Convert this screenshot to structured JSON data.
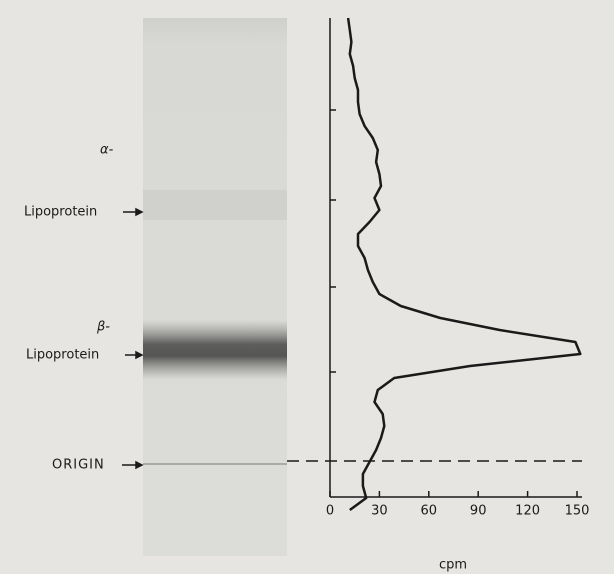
{
  "chart_data": {
    "type": "line",
    "orientation": "vertical-position",
    "annotations": [
      "α-",
      "Lipoprotein",
      "β-",
      "Lipoprotein",
      "ORIGIN"
    ],
    "categories": [
      null,
      null,
      null,
      null,
      null,
      null,
      null,
      null,
      null,
      null,
      null,
      null,
      null,
      null,
      null,
      null,
      null,
      null,
      null,
      null,
      null,
      null,
      null,
      null,
      null,
      null,
      null,
      null,
      null,
      null,
      null,
      null,
      null,
      null,
      null,
      null,
      null,
      null,
      null,
      null,
      null,
      null
    ],
    "values": [
      11,
      12,
      13,
      12,
      14,
      15,
      17,
      17,
      18,
      21,
      26,
      29,
      28,
      30,
      31,
      27,
      30,
      24,
      17,
      17,
      21,
      23,
      26,
      30,
      43,
      67,
      103,
      149,
      152,
      85,
      39,
      29,
      27,
      32,
      33,
      31,
      28,
      24,
      20,
      20,
      22,
      12
    ],
    "color": "#1a1a1a",
    "xlim": [
      0,
      150
    ],
    "xticks": [
      0,
      30,
      60,
      90,
      120,
      150
    ],
    "xlabel": "cpm"
  }
}
